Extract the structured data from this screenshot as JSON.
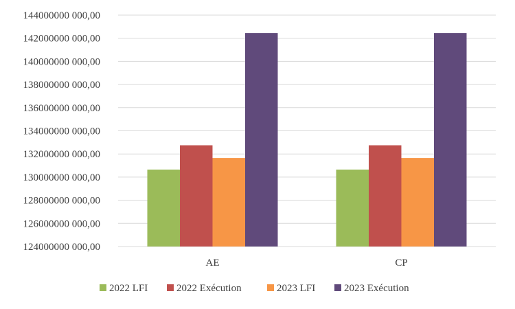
{
  "chart_data": {
    "type": "bar",
    "categories": [
      "AE",
      "CP"
    ],
    "series": [
      {
        "name": "2022 LFI",
        "color": "#9bbb59",
        "values": [
          130650000000,
          130650000000
        ]
      },
      {
        "name": "2022 Exécution",
        "color": "#c0504d",
        "values": [
          132750000000,
          132750000000
        ]
      },
      {
        "name": "2023 LFI",
        "color": "#f79646",
        "values": [
          131650000000,
          131650000000
        ]
      },
      {
        "name": "2023 Exécution",
        "color": "#604a7b",
        "values": [
          142450000000,
          142450000000
        ]
      }
    ],
    "ylim": [
      124000000000,
      144000000000
    ],
    "yticks": [
      {
        "value": 124000000000,
        "label": "124000000 000,00"
      },
      {
        "value": 126000000000,
        "label": "126000000 000,00"
      },
      {
        "value": 128000000000,
        "label": "128000000 000,00"
      },
      {
        "value": 130000000000,
        "label": "130000000 000,00"
      },
      {
        "value": 132000000000,
        "label": "132000000 000,00"
      },
      {
        "value": 134000000000,
        "label": "134000000 000,00"
      },
      {
        "value": 136000000000,
        "label": "136000000 000,00"
      },
      {
        "value": 138000000000,
        "label": "138000000 000,00"
      },
      {
        "value": 140000000000,
        "label": "140000000 000,00"
      },
      {
        "value": 142000000000,
        "label": "142000000 000,00"
      },
      {
        "value": 144000000000,
        "label": "144000000 000,00"
      }
    ],
    "grid": true,
    "legend": "bottom"
  }
}
